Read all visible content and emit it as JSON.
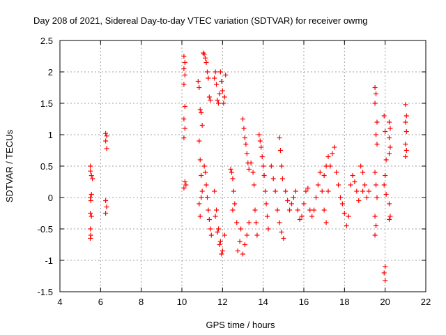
{
  "chart_data": {
    "type": "scatter",
    "title": "Day 208 of 2021, Sidereal Day-to-day VTEC variation (SDTVAR) for receiver owmg",
    "xlabel": "GPS time / hours",
    "ylabel": "SDTVAR / TECUs",
    "xlim": [
      4,
      22
    ],
    "ylim": [
      -1.5,
      2.5
    ],
    "xticks": [
      4,
      6,
      8,
      10,
      12,
      14,
      16,
      18,
      20,
      22
    ],
    "xtick_labels": [
      "4",
      "6",
      "8",
      "10",
      "12",
      "14",
      "16",
      "18",
      "20",
      "22"
    ],
    "yticks": [
      -1.5,
      -1,
      -0.5,
      0,
      0.5,
      1,
      1.5,
      2,
      2.5
    ],
    "ytick_labels": [
      "-1.5",
      "-1",
      "-0.5",
      "0",
      "0.5",
      "1",
      "1.5",
      "2",
      "2.5"
    ],
    "grid": true,
    "marker": "+",
    "color": "#ff0000",
    "series": [
      {
        "name": "SDTVAR",
        "points": [
          [
            5.5,
            0.5
          ],
          [
            5.5,
            0.42
          ],
          [
            5.55,
            0.35
          ],
          [
            5.5,
            0.0
          ],
          [
            5.52,
            -0.05
          ],
          [
            5.5,
            -0.25
          ],
          [
            5.55,
            -0.3
          ],
          [
            5.5,
            -0.5
          ],
          [
            5.52,
            -0.6
          ],
          [
            5.5,
            -0.65
          ],
          [
            5.55,
            0.05
          ],
          [
            5.6,
            0.3
          ],
          [
            6.25,
            1.02
          ],
          [
            6.3,
            0.98
          ],
          [
            6.25,
            0.9
          ],
          [
            6.3,
            0.78
          ],
          [
            6.25,
            -0.05
          ],
          [
            6.3,
            -0.15
          ],
          [
            6.25,
            -0.25
          ],
          [
            10.1,
            2.25
          ],
          [
            10.15,
            2.15
          ],
          [
            10.1,
            2.05
          ],
          [
            10.15,
            1.95
          ],
          [
            10.1,
            1.8
          ],
          [
            10.15,
            1.45
          ],
          [
            10.1,
            1.25
          ],
          [
            10.15,
            1.1
          ],
          [
            10.1,
            0.95
          ],
          [
            10.15,
            0.25
          ],
          [
            10.1,
            0.15
          ],
          [
            10.2,
            0.2
          ],
          [
            10.8,
            1.85
          ],
          [
            10.85,
            1.75
          ],
          [
            10.9,
            1.4
          ],
          [
            10.95,
            1.35
          ],
          [
            11.0,
            1.15
          ],
          [
            10.85,
            0.9
          ],
          [
            10.9,
            0.6
          ],
          [
            10.95,
            0.35
          ],
          [
            11.0,
            0.1
          ],
          [
            10.85,
            -0.1
          ],
          [
            10.9,
            -0.3
          ],
          [
            10.95,
            0.0
          ],
          [
            11.05,
            2.3
          ],
          [
            11.1,
            2.28
          ],
          [
            11.15,
            2.22
          ],
          [
            11.2,
            2.15
          ],
          [
            11.25,
            2.0
          ],
          [
            11.3,
            1.9
          ],
          [
            11.35,
            1.6
          ],
          [
            11.4,
            1.55
          ],
          [
            11.1,
            0.5
          ],
          [
            11.15,
            0.4
          ],
          [
            11.2,
            0.2
          ],
          [
            11.25,
            0.0
          ],
          [
            11.3,
            -0.2
          ],
          [
            11.35,
            -0.35
          ],
          [
            11.4,
            -0.5
          ],
          [
            11.45,
            -0.6
          ],
          [
            11.6,
            1.9
          ],
          [
            11.65,
            2.0
          ],
          [
            11.7,
            1.8
          ],
          [
            11.75,
            1.55
          ],
          [
            11.8,
            1.5
          ],
          [
            11.85,
            1.65
          ],
          [
            11.9,
            2.0
          ],
          [
            11.95,
            1.85
          ],
          [
            12.0,
            1.7
          ],
          [
            12.05,
            1.5
          ],
          [
            12.1,
            1.6
          ],
          [
            12.15,
            1.95
          ],
          [
            11.6,
            0.1
          ],
          [
            11.7,
            -0.2
          ],
          [
            11.8,
            -0.5
          ],
          [
            11.9,
            -0.7
          ],
          [
            12.0,
            -0.85
          ],
          [
            12.1,
            -0.6
          ],
          [
            11.65,
            -0.3
          ],
          [
            11.75,
            -0.55
          ],
          [
            11.85,
            -0.75
          ],
          [
            11.95,
            -0.9
          ],
          [
            12.4,
            0.45
          ],
          [
            12.5,
            0.3
          ],
          [
            12.55,
            0.1
          ],
          [
            12.6,
            -0.1
          ],
          [
            12.7,
            -0.4
          ],
          [
            12.75,
            -0.85
          ],
          [
            12.85,
            -0.7
          ],
          [
            12.9,
            -0.5
          ],
          [
            12.5,
            -0.2
          ],
          [
            12.45,
            0.4
          ],
          [
            13.0,
            1.25
          ],
          [
            13.05,
            1.1
          ],
          [
            13.1,
            0.95
          ],
          [
            13.15,
            0.85
          ],
          [
            13.2,
            0.7
          ],
          [
            13.25,
            0.55
          ],
          [
            13.3,
            0.45
          ],
          [
            13.0,
            -0.9
          ],
          [
            13.1,
            -0.75
          ],
          [
            13.2,
            -0.6
          ],
          [
            13.3,
            -0.4
          ],
          [
            13.4,
            0.55
          ],
          [
            13.5,
            0.4
          ],
          [
            13.55,
            0.2
          ],
          [
            13.6,
            -0.2
          ],
          [
            13.65,
            -0.4
          ],
          [
            13.7,
            -0.6
          ],
          [
            13.8,
            1.0
          ],
          [
            13.85,
            0.9
          ],
          [
            13.9,
            0.8
          ],
          [
            13.95,
            0.65
          ],
          [
            14.0,
            0.5
          ],
          [
            14.05,
            0.35
          ],
          [
            14.1,
            0.1
          ],
          [
            14.15,
            -0.1
          ],
          [
            14.2,
            -0.3
          ],
          [
            14.25,
            -0.5
          ],
          [
            14.4,
            0.5
          ],
          [
            14.5,
            0.3
          ],
          [
            14.6,
            0.1
          ],
          [
            14.7,
            -0.2
          ],
          [
            14.8,
            -0.4
          ],
          [
            14.9,
            -0.55
          ],
          [
            15.0,
            -0.65
          ],
          [
            14.8,
            0.95
          ],
          [
            14.85,
            0.75
          ],
          [
            14.9,
            0.5
          ],
          [
            14.95,
            0.3
          ],
          [
            15.1,
            0.1
          ],
          [
            15.2,
            -0.05
          ],
          [
            15.3,
            -0.2
          ],
          [
            15.4,
            -0.1
          ],
          [
            15.5,
            0.0
          ],
          [
            15.6,
            0.1
          ],
          [
            15.7,
            -0.2
          ],
          [
            15.8,
            -0.35
          ],
          [
            15.9,
            -0.3
          ],
          [
            16.0,
            -0.1
          ],
          [
            16.1,
            0.1
          ],
          [
            16.2,
            0.15
          ],
          [
            16.3,
            -0.2
          ],
          [
            16.4,
            -0.3
          ],
          [
            16.5,
            -0.2
          ],
          [
            16.6,
            0.0
          ],
          [
            16.7,
            0.2
          ],
          [
            16.8,
            0.4
          ],
          [
            16.9,
            0.1
          ],
          [
            17.0,
            -0.2
          ],
          [
            17.1,
            -0.4
          ],
          [
            17.2,
            0.1
          ],
          [
            17.3,
            0.5
          ],
          [
            17.4,
            0.7
          ],
          [
            17.5,
            0.8
          ],
          [
            17.6,
            0.4
          ],
          [
            17.0,
            0.35
          ],
          [
            17.1,
            0.5
          ],
          [
            17.2,
            0.65
          ],
          [
            17.7,
            0.2
          ],
          [
            17.8,
            0.0
          ],
          [
            17.9,
            -0.1
          ],
          [
            18.0,
            -0.25
          ],
          [
            18.1,
            -0.45
          ],
          [
            18.2,
            -0.3
          ],
          [
            18.3,
            0.2
          ],
          [
            18.4,
            0.35
          ],
          [
            18.5,
            0.25
          ],
          [
            18.6,
            0.1
          ],
          [
            18.7,
            -0.05
          ],
          [
            18.8,
            0.5
          ],
          [
            18.9,
            0.4
          ],
          [
            19.0,
            0.2
          ],
          [
            19.1,
            0.0
          ],
          [
            19.2,
            0.1
          ],
          [
            18.9,
            0.1
          ],
          [
            19.5,
            1.75
          ],
          [
            19.55,
            1.65
          ],
          [
            19.5,
            1.5
          ],
          [
            19.6,
            1.2
          ],
          [
            19.55,
            1.0
          ],
          [
            19.6,
            0.85
          ],
          [
            19.5,
            0.4
          ],
          [
            19.55,
            0.2
          ],
          [
            19.6,
            0.0
          ],
          [
            19.5,
            -0.3
          ],
          [
            19.55,
            -0.45
          ],
          [
            19.5,
            -0.6
          ],
          [
            19.95,
            1.3
          ],
          [
            20.0,
            1.05
          ],
          [
            20.05,
            0.6
          ],
          [
            20.0,
            0.35
          ],
          [
            19.95,
            0.2
          ],
          [
            20.05,
            0.05
          ],
          [
            20.0,
            -1.1
          ],
          [
            19.95,
            -1.2
          ],
          [
            20.0,
            -1.32
          ],
          [
            20.2,
            1.2
          ],
          [
            20.25,
            1.1
          ],
          [
            20.2,
            0.95
          ],
          [
            20.25,
            0.8
          ],
          [
            20.2,
            0.7
          ],
          [
            20.2,
            -0.1
          ],
          [
            20.25,
            -0.3
          ],
          [
            20.2,
            -0.35
          ],
          [
            21.0,
            1.48
          ],
          [
            21.05,
            1.3
          ],
          [
            21.0,
            1.2
          ],
          [
            21.05,
            1.05
          ],
          [
            21.0,
            0.85
          ],
          [
            21.05,
            0.75
          ],
          [
            21.0,
            0.65
          ]
        ]
      }
    ]
  }
}
